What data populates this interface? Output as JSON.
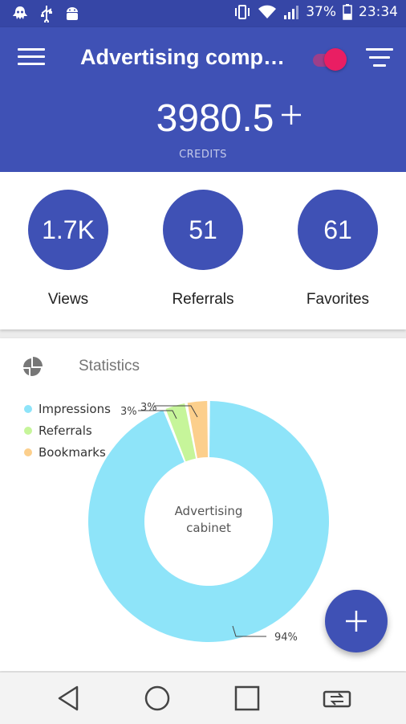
{
  "status_bar": {
    "battery": "37%",
    "time": "23:34",
    "left_icons": [
      "ghost-icon",
      "usb-icon",
      "android-icon"
    ],
    "right_icons": [
      "vibrate-icon",
      "wifi-icon",
      "signal-icon",
      "battery-icon"
    ]
  },
  "app_bar": {
    "title": "Advertising compa…",
    "credits_value": "3980.5",
    "credits_label": "CREDITS",
    "toggle_on": true
  },
  "stats": [
    {
      "value": "1.7K",
      "label": "Views"
    },
    {
      "value": "51",
      "label": "Referrals"
    },
    {
      "value": "61",
      "label": "Favorites"
    }
  ],
  "statistics": {
    "title": "Statistics",
    "center_label_line1": "Advertising",
    "center_label_line2": "cabinet",
    "legend": [
      {
        "label": "Impressions",
        "color": "#8ee4f9"
      },
      {
        "label": "Referrals",
        "color": "#c6f59a"
      },
      {
        "label": "Bookmarks",
        "color": "#fccf8c"
      }
    ],
    "slices": [
      {
        "label": "Impressions",
        "percent": 94,
        "display": "94%"
      },
      {
        "label": "Referrals",
        "percent": 3,
        "display": "3%"
      },
      {
        "label": "Bookmarks",
        "percent": 3,
        "display": "3%"
      }
    ]
  },
  "colors": {
    "primary": "#3f51b5",
    "primary_dark": "#3646a6",
    "accent": "#e91e63"
  }
}
